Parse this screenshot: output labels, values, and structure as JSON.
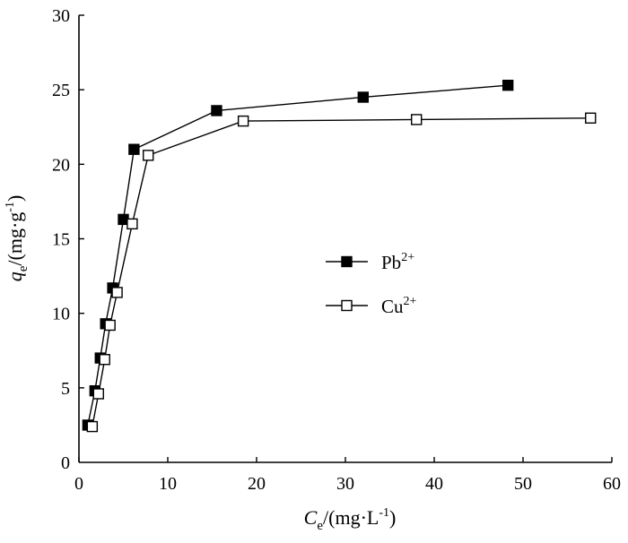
{
  "chart_data": {
    "type": "line",
    "xlabel": "C",
    "xlabel_sub": "e",
    "xlabel_unit_prefix": "/(mg·L",
    "xlabel_unit_sup": "-1",
    "xlabel_unit_suffix": ")",
    "ylabel": "q",
    "ylabel_sub": "e",
    "ylabel_unit_prefix": "/(mg·g",
    "ylabel_unit_sup": "-1",
    "ylabel_unit_suffix": ")",
    "xlim": [
      0,
      60
    ],
    "ylim": [
      0,
      30
    ],
    "x_ticks": [
      0,
      10,
      20,
      30,
      40,
      50,
      60
    ],
    "y_ticks": [
      5,
      10,
      15,
      20,
      25,
      30
    ],
    "y_ticks_with_label": [
      0,
      5,
      10,
      15,
      20,
      25,
      30
    ],
    "grid": false,
    "legend_position": "center-right",
    "series": [
      {
        "name_base": "Pb",
        "name_sup": "2+",
        "marker": "filled-square",
        "color": "#000000",
        "x": [
          1.0,
          1.8,
          2.4,
          3.0,
          3.8,
          5.0,
          6.2,
          15.5,
          32.0,
          48.3
        ],
        "y": [
          2.5,
          4.8,
          7.0,
          9.3,
          11.7,
          16.3,
          21.0,
          23.6,
          24.5,
          25.3
        ]
      },
      {
        "name_base": "Cu",
        "name_sup": "2+",
        "marker": "open-square",
        "color": "#000000",
        "x": [
          1.5,
          2.2,
          2.9,
          3.5,
          4.3,
          6.0,
          7.8,
          18.5,
          38.0,
          57.6
        ],
        "y": [
          2.4,
          4.6,
          6.9,
          9.2,
          11.4,
          16.0,
          20.6,
          22.9,
          23.0,
          23.1
        ]
      }
    ]
  }
}
